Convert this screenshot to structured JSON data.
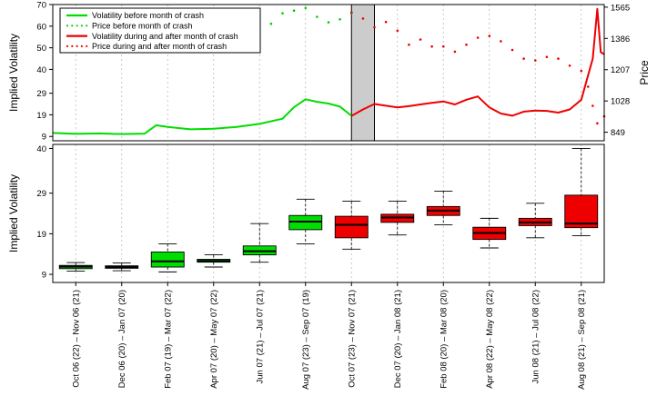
{
  "chart_data": [
    {
      "type": "line",
      "ylabel": "Implied Volatility",
      "y2label": "Price",
      "ylim": [
        7,
        70
      ],
      "y2lim": [
        800,
        1580
      ],
      "yticks": [
        9,
        19,
        29,
        40,
        50,
        60,
        70
      ],
      "y2ticks": [
        849,
        1028,
        1207,
        1386,
        1565
      ],
      "x_range": [
        0,
        24
      ],
      "crash_window": [
        13.0,
        14.0
      ],
      "legend_position": "top-left",
      "legend": [
        "Volatility before month of crash",
        "Price before month of crash",
        "Volatility during and after month of crash",
        "Price during and after month of crash"
      ],
      "series": [
        {
          "name": "Volatility before month of crash",
          "style": "solid",
          "color": "#00dd00",
          "axis": "left",
          "points": [
            [
              0,
              10.6
            ],
            [
              1,
              10.2
            ],
            [
              2,
              10.4
            ],
            [
              3,
              10.1
            ],
            [
              4,
              10.3
            ],
            [
              4.5,
              14.2
            ],
            [
              5,
              13.4
            ],
            [
              6,
              12.3
            ],
            [
              7,
              12.6
            ],
            [
              8,
              13.4
            ],
            [
              9,
              14.8
            ],
            [
              10,
              17.2
            ],
            [
              10.5,
              22.5
            ],
            [
              11,
              26.2
            ],
            [
              11.5,
              25.0
            ],
            [
              12,
              24.2
            ],
            [
              12.5,
              22.8
            ],
            [
              13,
              18.5
            ]
          ]
        },
        {
          "name": "Price before month of crash",
          "style": "dotted",
          "color": "#00cc00",
          "axis": "right",
          "points": [
            [
              8.5,
              1440
            ],
            [
              9,
              1500
            ],
            [
              9.5,
              1470
            ],
            [
              10,
              1530
            ],
            [
              10.5,
              1545
            ],
            [
              11,
              1560
            ],
            [
              11.5,
              1510
            ],
            [
              12,
              1478
            ],
            [
              12.5,
              1495
            ],
            [
              13,
              1530
            ]
          ]
        },
        {
          "name": "Volatility during and after month of crash",
          "style": "solid",
          "color": "#ee0000",
          "axis": "left",
          "points": [
            [
              13,
              18.5
            ],
            [
              13.5,
              21.5
            ],
            [
              14,
              24.0
            ],
            [
              14.5,
              23.2
            ],
            [
              15,
              22.4
            ],
            [
              15.5,
              23.0
            ],
            [
              16,
              23.8
            ],
            [
              16.5,
              24.5
            ],
            [
              17,
              25.2
            ],
            [
              17.5,
              23.8
            ],
            [
              18,
              26.0
            ],
            [
              18.5,
              27.5
            ],
            [
              19,
              22.4
            ],
            [
              19.5,
              19.6
            ],
            [
              20,
              18.6
            ],
            [
              20.5,
              20.5
            ],
            [
              21,
              21.0
            ],
            [
              21.5,
              20.8
            ],
            [
              22,
              20.0
            ],
            [
              22.5,
              21.5
            ],
            [
              23,
              26.0
            ],
            [
              23.5,
              45.0
            ],
            [
              23.7,
              68.0
            ],
            [
              23.85,
              48.0
            ],
            [
              24,
              47.0
            ]
          ]
        },
        {
          "name": "Price during and after month of crash",
          "style": "dotted",
          "color": "#ee0000",
          "axis": "right",
          "points": [
            [
              13,
              1535
            ],
            [
              13.5,
              1500
            ],
            [
              14,
              1450
            ],
            [
              14.5,
              1480
            ],
            [
              15,
              1430
            ],
            [
              15.5,
              1350
            ],
            [
              16,
              1380
            ],
            [
              16.5,
              1340
            ],
            [
              17,
              1340
            ],
            [
              17.5,
              1310
            ],
            [
              18,
              1350
            ],
            [
              18.5,
              1390
            ],
            [
              19,
              1400
            ],
            [
              19.5,
              1370
            ],
            [
              20,
              1320
            ],
            [
              20.5,
              1270
            ],
            [
              21,
              1260
            ],
            [
              21.5,
              1280
            ],
            [
              22,
              1270
            ],
            [
              22.5,
              1230
            ],
            [
              23,
              1200
            ],
            [
              23.3,
              1110
            ],
            [
              23.5,
              1000
            ],
            [
              23.7,
              900
            ],
            [
              24,
              940
            ]
          ]
        }
      ]
    },
    {
      "type": "box",
      "ylabel": "Implied Volatility",
      "ylim": [
        7,
        41
      ],
      "yticks": [
        9,
        19,
        29,
        40
      ],
      "categories": [
        "Oct 06 (22) – Nov 06 (21)",
        "Dec 06 (20) – Jan 07 (20)",
        "Feb 07 (19) – Mar 07 (22)",
        "Apr 07 (20) – May 07 (22)",
        "Jun 07 (21) – Jul 07 (21)",
        "Aug 07 (23) – Sep 07 (19)",
        "Oct 07 (23) – Nov 07 (21)",
        "Dec 07 (20) – Jan 08 (21)",
        "Feb 08 (20) – Mar 08 (20)",
        "Apr 08 (22) – May 08 (22)",
        "Jun 08 (21) – Jul 08 (22)",
        "Aug 08 (21) – Sep 08 (21)"
      ],
      "boxes": [
        {
          "color": "#00dd00",
          "whisker_low": 9.8,
          "q1": 10.4,
          "median": 10.9,
          "q3": 11.2,
          "whisker_high": 11.9
        },
        {
          "color": "#00dd00",
          "whisker_low": 9.9,
          "q1": 10.5,
          "median": 10.8,
          "q3": 11.1,
          "whisker_high": 11.8
        },
        {
          "color": "#00dd00",
          "whisker_low": 9.6,
          "q1": 10.8,
          "median": 12.2,
          "q3": 14.5,
          "whisker_high": 16.5
        },
        {
          "color": "#00dd00",
          "whisker_low": 10.8,
          "q1": 12.0,
          "median": 12.3,
          "q3": 12.7,
          "whisker_high": 13.8
        },
        {
          "color": "#00dd00",
          "whisker_low": 12.0,
          "q1": 13.8,
          "median": 14.7,
          "q3": 16.0,
          "whisker_high": 21.5
        },
        {
          "color": "#00dd00",
          "whisker_low": 16.5,
          "q1": 20.0,
          "median": 22.0,
          "q3": 23.5,
          "whisker_high": 27.5
        },
        {
          "color": "#ee0000",
          "whisker_low": 15.2,
          "q1": 18.0,
          "median": 21.2,
          "q3": 23.3,
          "whisker_high": 27.0
        },
        {
          "color": "#ee0000",
          "whisker_low": 18.7,
          "q1": 21.8,
          "median": 23.0,
          "q3": 23.8,
          "whisker_high": 27.0
        },
        {
          "color": "#ee0000",
          "whisker_low": 21.2,
          "q1": 23.5,
          "median": 24.7,
          "q3": 25.7,
          "whisker_high": 29.5
        },
        {
          "color": "#ee0000",
          "whisker_low": 15.5,
          "q1": 17.6,
          "median": 19.2,
          "q3": 20.6,
          "whisker_high": 22.8
        },
        {
          "color": "#ee0000",
          "whisker_low": 18.0,
          "q1": 21.0,
          "median": 21.8,
          "q3": 22.8,
          "whisker_high": 26.5
        },
        {
          "color": "#ee0000",
          "whisker_low": 18.5,
          "q1": 20.5,
          "median": 21.5,
          "q3": 28.5,
          "whisker_high": 40.0
        }
      ]
    }
  ]
}
